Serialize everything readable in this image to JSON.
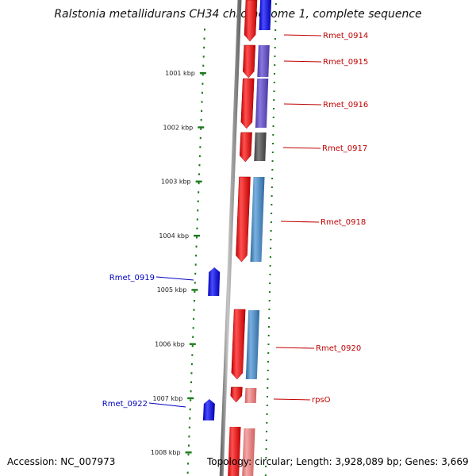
{
  "title": "Ralstonia metallidurans CH34 chromosome 1, complete sequence",
  "footer": {
    "accession": "Accession: NC_007973",
    "summary": "Topology: circular; Length: 3,928,089 bp; Genes: 3,669"
  },
  "colors": {
    "forward_strand": "#e00000",
    "reverse_strand": "#0000e0",
    "label_forward": "#c00000",
    "label_reverse": "#0000c0",
    "ticks": "#1a7a1a",
    "backbone": "#888888",
    "track_purple": "#6a55c8",
    "track_dark_gray": "#555555",
    "track_steel_blue": "#4a85c0",
    "track_pink": "#e88080"
  },
  "ticks": [
    "1001 kbp",
    "1002 kbp",
    "1003 kbp",
    "1004 kbp",
    "1005 kbp",
    "1006 kbp",
    "1007 kbp",
    "1008 kbp"
  ],
  "genes_forward": [
    {
      "name": "Rmet_0914"
    },
    {
      "name": "Rmet_0915"
    },
    {
      "name": "Rmet_0916"
    },
    {
      "name": "Rmet_0917"
    },
    {
      "name": "Rmet_0918"
    },
    {
      "name": "Rmet_0920"
    },
    {
      "name": "rpsO"
    }
  ],
  "genes_reverse": [
    {
      "name": "Rmet_0919"
    },
    {
      "name": "Rmet_0922"
    }
  ]
}
